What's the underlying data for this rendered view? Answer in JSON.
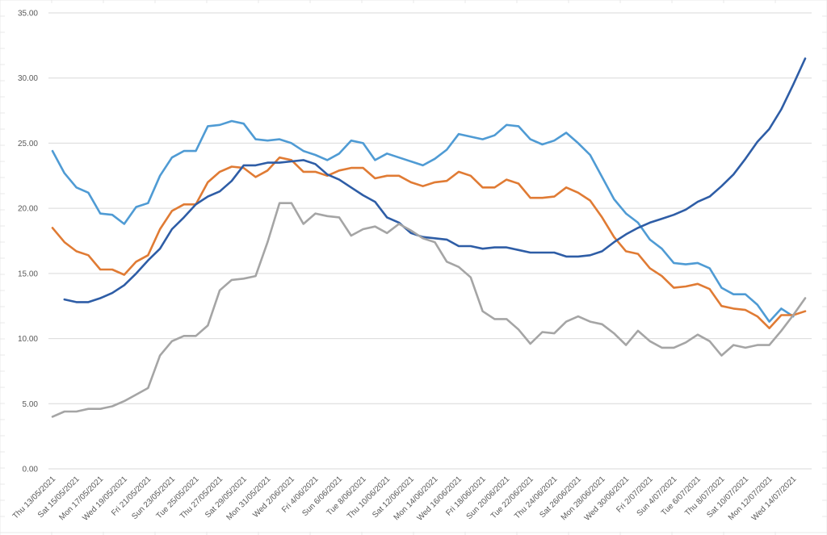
{
  "colors": {
    "background": "#ffffff",
    "grid": "#d9d9d9",
    "sheet_grid": "#e8e8e8",
    "tick_text": "#595959"
  },
  "chart_data": {
    "type": "line",
    "title": "",
    "xlabel": "",
    "ylabel": "",
    "ylim": [
      0,
      35
    ],
    "yticks": [
      "0.00",
      "5.00",
      "10.00",
      "15.00",
      "20.00",
      "25.00",
      "30.00",
      "35.00"
    ],
    "grid": true,
    "legend": "none",
    "x_labels": [
      "Thu 13/05/2021",
      "Sat 15/05/2021",
      "Mon 17/05/2021",
      "Wed 19/05/2021",
      "Fri 21/05/2021",
      "Sun 23/05/2021",
      "Tue 25/05/2021",
      "Thu 27/05/2021",
      "Sat 29/05/2021",
      "Mon 31/05/2021",
      "Wed 2/06/2021",
      "Fri 4/06/2021",
      "Sun 6/06/2021",
      "Tue 8/06/2021",
      "Thu 10/06/2021",
      "Sat 12/06/2021",
      "Mon 14/06/2021",
      "Wed 16/06/2021",
      "Fri 18/06/2021",
      "Sun 20/06/2021",
      "Tue 22/06/2021",
      "Thu 24/06/2021",
      "Sat 26/06/2021",
      "Mon 28/06/2021",
      "Wed 30/06/2021",
      "Fri 2/07/2021",
      "Sun 4/07/2021",
      "Tue 6/07/2021",
      "Thu 8/07/2021",
      "Sat 10/07/2021",
      "Mon 12/07/2021",
      "Wed 14/07/2021"
    ],
    "x": [
      "2021-05-13",
      "2021-05-14",
      "2021-05-15",
      "2021-05-16",
      "2021-05-17",
      "2021-05-18",
      "2021-05-19",
      "2021-05-20",
      "2021-05-21",
      "2021-05-22",
      "2021-05-23",
      "2021-05-24",
      "2021-05-25",
      "2021-05-26",
      "2021-05-27",
      "2021-05-28",
      "2021-05-29",
      "2021-05-30",
      "2021-05-31",
      "2021-06-01",
      "2021-06-02",
      "2021-06-03",
      "2021-06-04",
      "2021-06-05",
      "2021-06-06",
      "2021-06-07",
      "2021-06-08",
      "2021-06-09",
      "2021-06-10",
      "2021-06-11",
      "2021-06-12",
      "2021-06-13",
      "2021-06-14",
      "2021-06-15",
      "2021-06-16",
      "2021-06-17",
      "2021-06-18",
      "2021-06-19",
      "2021-06-20",
      "2021-06-21",
      "2021-06-22",
      "2021-06-23",
      "2021-06-24",
      "2021-06-25",
      "2021-06-26",
      "2021-06-27",
      "2021-06-28",
      "2021-06-29",
      "2021-06-30",
      "2021-07-01",
      "2021-07-02",
      "2021-07-03",
      "2021-07-04",
      "2021-07-05",
      "2021-07-06",
      "2021-07-07",
      "2021-07-08",
      "2021-07-09",
      "2021-07-10",
      "2021-07-11",
      "2021-07-12",
      "2021-07-13",
      "2021-07-14",
      "2021-07-15"
    ],
    "series": [
      {
        "color": "#4f9bd4",
        "values": [
          24.4,
          22.7,
          21.6,
          21.2,
          19.6,
          19.5,
          18.8,
          20.1,
          20.4,
          22.5,
          23.9,
          24.4,
          24.4,
          26.3,
          26.4,
          26.7,
          26.5,
          25.3,
          25.2,
          25.3,
          25.0,
          24.4,
          24.1,
          23.7,
          24.2,
          25.2,
          25.0,
          23.7,
          24.2,
          23.9,
          23.6,
          23.3,
          23.8,
          24.5,
          25.7,
          25.5,
          25.3,
          25.6,
          26.4,
          26.3,
          25.3,
          24.9,
          25.2,
          25.8,
          25.0,
          24.1,
          22.4,
          20.7,
          19.6,
          18.9,
          17.6,
          16.9,
          15.8,
          15.7,
          15.8,
          15.4,
          13.9,
          13.4,
          13.4,
          12.6,
          11.3,
          12.3,
          11.7,
          null
        ]
      },
      {
        "color": "#e07b34",
        "values": [
          18.5,
          17.4,
          16.7,
          16.4,
          15.3,
          15.3,
          14.9,
          15.9,
          16.4,
          18.4,
          19.8,
          20.3,
          20.3,
          22.0,
          22.8,
          23.2,
          23.1,
          22.4,
          22.9,
          23.9,
          23.7,
          22.8,
          22.8,
          22.5,
          22.9,
          23.1,
          23.1,
          22.3,
          22.5,
          22.5,
          22.0,
          21.7,
          22.0,
          22.1,
          22.8,
          22.5,
          21.6,
          21.6,
          22.2,
          21.9,
          20.8,
          20.8,
          20.9,
          21.6,
          21.2,
          20.6,
          19.3,
          17.8,
          16.7,
          16.5,
          15.4,
          14.8,
          13.9,
          14.0,
          14.2,
          13.8,
          12.5,
          12.3,
          12.2,
          11.7,
          10.8,
          11.8,
          11.8,
          12.1
        ]
      },
      {
        "color": "#2e5da6",
        "values": [
          null,
          13.0,
          12.8,
          12.8,
          13.1,
          13.5,
          14.1,
          15.0,
          16.0,
          16.9,
          18.4,
          19.3,
          20.3,
          20.9,
          21.3,
          22.1,
          23.3,
          23.3,
          23.5,
          23.5,
          23.6,
          23.7,
          23.4,
          22.6,
          22.2,
          21.6,
          21.0,
          20.5,
          19.3,
          18.9,
          18.1,
          17.8,
          17.7,
          17.6,
          17.1,
          17.1,
          16.9,
          17.0,
          17.0,
          16.8,
          16.6,
          16.6,
          16.6,
          16.3,
          16.3,
          16.4,
          16.7,
          17.4,
          18.0,
          18.5,
          18.9,
          19.2,
          19.5,
          19.9,
          20.5,
          20.9,
          21.7,
          22.6,
          23.8,
          25.1,
          26.1,
          27.6,
          29.5,
          31.5
        ]
      },
      {
        "color": "#a5a5a5",
        "values": [
          4.0,
          4.4,
          4.4,
          4.6,
          4.6,
          4.8,
          5.2,
          5.7,
          6.2,
          8.7,
          9.8,
          10.2,
          10.2,
          11.0,
          13.7,
          14.5,
          14.6,
          14.8,
          17.4,
          20.4,
          20.4,
          18.8,
          19.6,
          19.4,
          19.3,
          17.9,
          18.4,
          18.6,
          18.1,
          18.8,
          18.3,
          17.7,
          17.4,
          15.9,
          15.5,
          14.7,
          12.1,
          11.5,
          11.5,
          10.7,
          9.6,
          10.5,
          10.4,
          11.3,
          11.7,
          11.3,
          11.1,
          10.4,
          9.5,
          10.6,
          9.8,
          9.3,
          9.3,
          9.7,
          10.3,
          9.8,
          8.7,
          9.5,
          9.3,
          9.5,
          9.5,
          10.6,
          11.8,
          13.1
        ]
      }
    ]
  }
}
